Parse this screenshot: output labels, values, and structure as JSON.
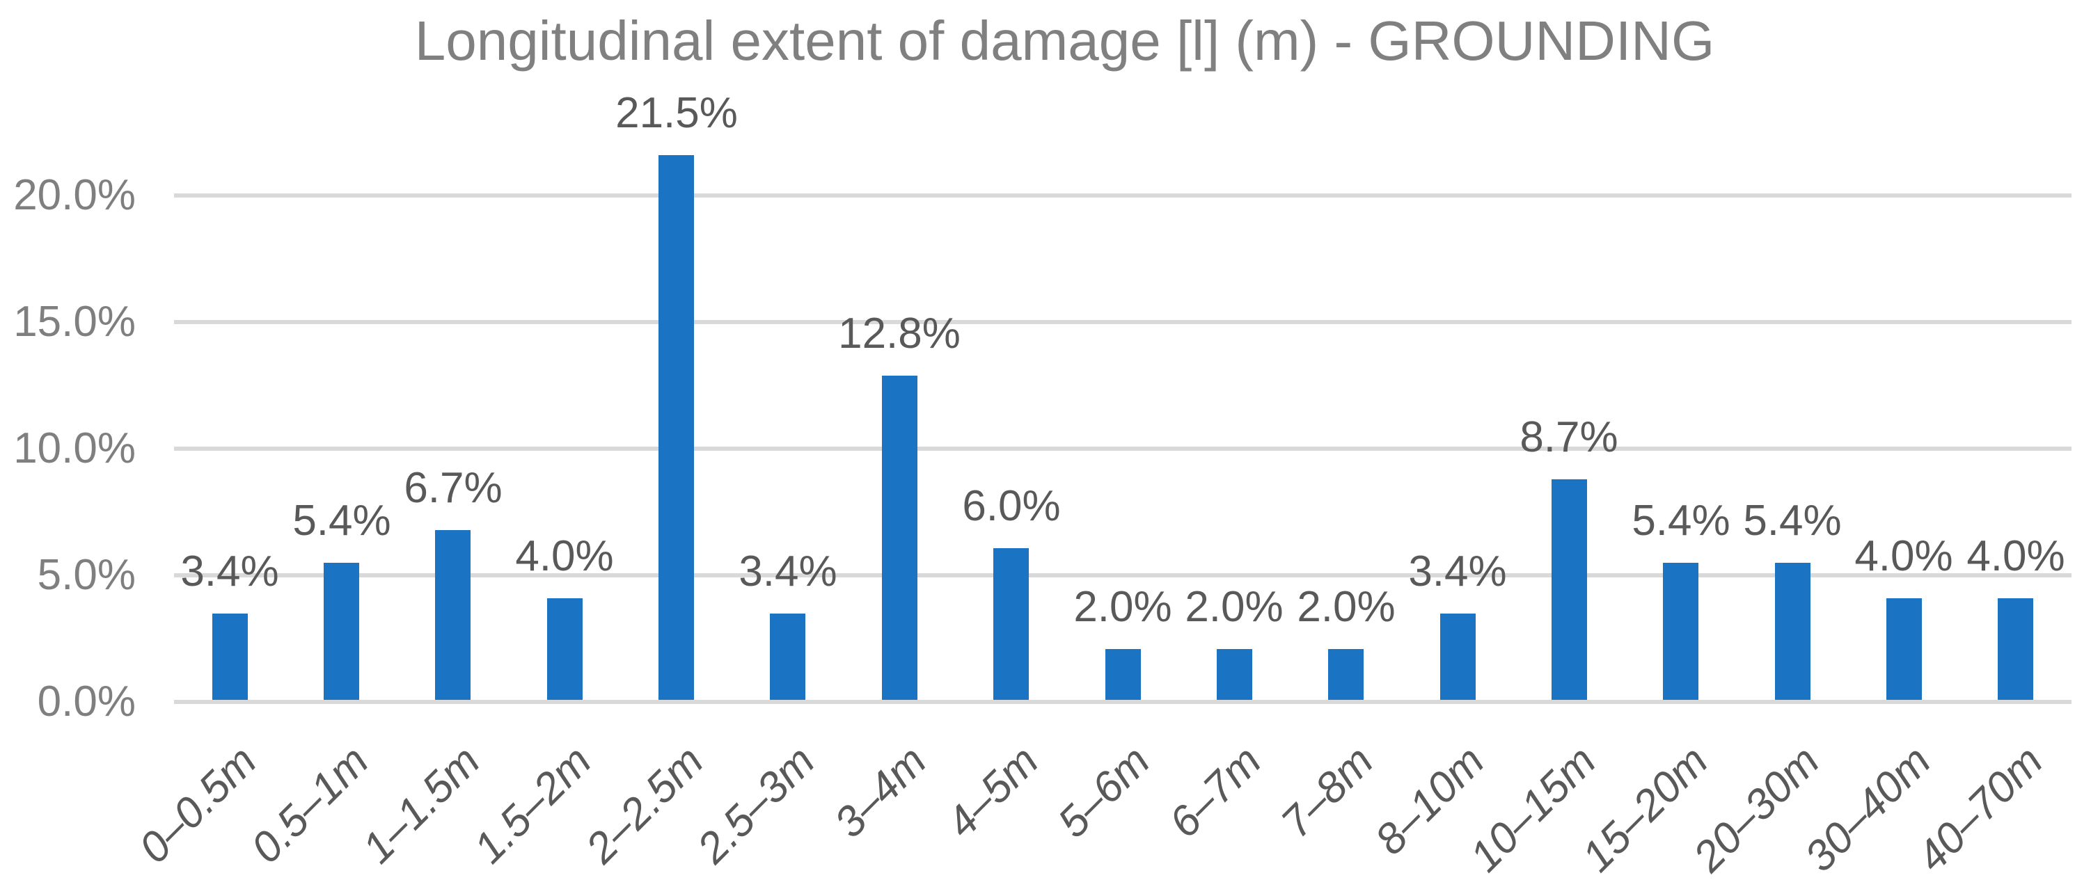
{
  "chart_data": {
    "type": "bar",
    "title": "Longitudinal extent of damage [l] (m) - GROUNDING",
    "categories": [
      "0–0.5m",
      "0.5–1m",
      "1–1.5m",
      "1.5–2m",
      "2–2.5m",
      "2.5–3m",
      "3–4m",
      "4–5m",
      "5–6m",
      "6–7m",
      "7–8m",
      "8–10m",
      "10–15m",
      "15–20m",
      "20–30m",
      "30–40m",
      "40–70m"
    ],
    "values": [
      3.4,
      5.4,
      6.7,
      4.0,
      21.5,
      3.4,
      12.8,
      6.0,
      2.0,
      2.0,
      2.0,
      3.4,
      8.7,
      5.4,
      5.4,
      4.0,
      4.0
    ],
    "data_labels": [
      "3.4%",
      "5.4%",
      "6.7%",
      "4.0%",
      "21.5%",
      "3.4%",
      "12.8%",
      "6.0%",
      "2.0%",
      "2.0%",
      "2.0%",
      "3.4%",
      "8.7%",
      "5.4%",
      "5.4%",
      "4.0%",
      "4.0%"
    ],
    "xlabel": "",
    "ylabel": "",
    "y_axis": {
      "ticks": [
        "0.0%",
        "5.0%",
        "10.0%",
        "15.0%",
        "20.0%"
      ],
      "tick_values": [
        0,
        5,
        10,
        15,
        20
      ]
    },
    "ylim": [
      0,
      22.4
    ],
    "grid": true,
    "legend": "none",
    "colors": {
      "bar": "#1B73C4",
      "gridline": "#D9D9D9",
      "title_text": "#808080",
      "y_axis_text": "#7F7F7F",
      "x_axis_text": "#595959",
      "data_label_text": "#595959",
      "background": "#FFFFFF"
    }
  }
}
